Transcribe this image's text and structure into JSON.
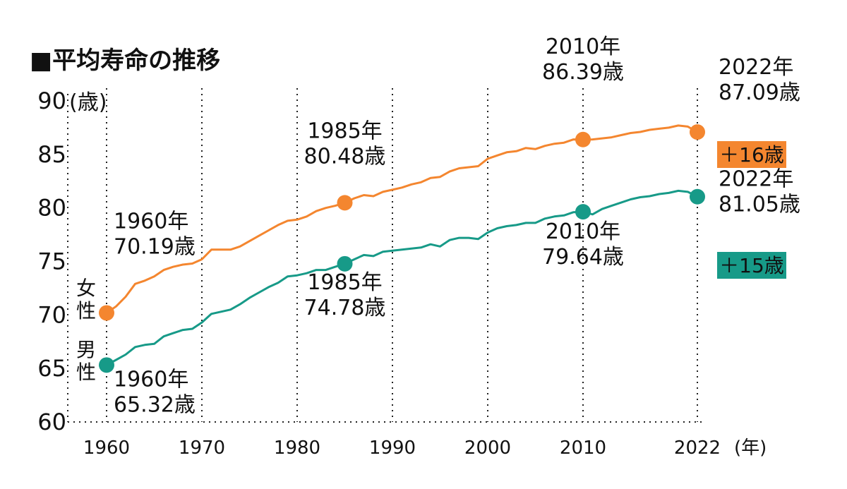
{
  "chart_data": {
    "type": "line",
    "title": "■平均寿命の推移",
    "ylabel": "(歳)",
    "xlabel": "(年)",
    "ylim": [
      60,
      90
    ],
    "xlim": [
      1956,
      2023
    ],
    "y_ticks": [
      "60",
      "65",
      "70",
      "75",
      "80",
      "85",
      "90"
    ],
    "x_ticks": [
      "1960",
      "1970",
      "1980",
      "1990",
      "2000",
      "2010",
      "2022"
    ],
    "grid": "vertical dotted lines at tick years",
    "series": [
      {
        "name": "女性",
        "label_lines": [
          "女",
          "性"
        ],
        "color": "#f4862f",
        "points": [
          [
            1960,
            70.19
          ],
          [
            1961,
            70.8
          ],
          [
            1962,
            71.7
          ],
          [
            1963,
            72.9
          ],
          [
            1964,
            73.2
          ],
          [
            1965,
            73.6
          ],
          [
            1966,
            74.2
          ],
          [
            1967,
            74.5
          ],
          [
            1968,
            74.7
          ],
          [
            1969,
            74.8
          ],
          [
            1970,
            75.2
          ],
          [
            1971,
            76.1
          ],
          [
            1972,
            76.1
          ],
          [
            1973,
            76.1
          ],
          [
            1974,
            76.4
          ],
          [
            1975,
            76.9
          ],
          [
            1976,
            77.4
          ],
          [
            1977,
            77.9
          ],
          [
            1978,
            78.4
          ],
          [
            1979,
            78.8
          ],
          [
            1980,
            78.9
          ],
          [
            1981,
            79.2
          ],
          [
            1982,
            79.7
          ],
          [
            1983,
            80.0
          ],
          [
            1984,
            80.2
          ],
          [
            1985,
            80.48
          ],
          [
            1986,
            80.9
          ],
          [
            1987,
            81.2
          ],
          [
            1988,
            81.1
          ],
          [
            1989,
            81.5
          ],
          [
            1990,
            81.7
          ],
          [
            1991,
            81.9
          ],
          [
            1992,
            82.2
          ],
          [
            1993,
            82.4
          ],
          [
            1994,
            82.8
          ],
          [
            1995,
            82.9
          ],
          [
            1996,
            83.4
          ],
          [
            1997,
            83.7
          ],
          [
            1998,
            83.8
          ],
          [
            1999,
            83.9
          ],
          [
            2000,
            84.6
          ],
          [
            2001,
            84.9
          ],
          [
            2002,
            85.2
          ],
          [
            2003,
            85.3
          ],
          [
            2004,
            85.6
          ],
          [
            2005,
            85.5
          ],
          [
            2006,
            85.8
          ],
          [
            2007,
            86.0
          ],
          [
            2008,
            86.1
          ],
          [
            2009,
            86.4
          ],
          [
            2010,
            86.39
          ],
          [
            2011,
            86.4
          ],
          [
            2012,
            86.5
          ],
          [
            2013,
            86.6
          ],
          [
            2014,
            86.8
          ],
          [
            2015,
            87.0
          ],
          [
            2016,
            87.1
          ],
          [
            2017,
            87.3
          ],
          [
            2018,
            87.4
          ],
          [
            2019,
            87.5
          ],
          [
            2020,
            87.7
          ],
          [
            2021,
            87.6
          ],
          [
            2022,
            87.09
          ]
        ],
        "highlights": [
          {
            "year": "1960年",
            "value": "70.19歳"
          },
          {
            "year": "1985年",
            "value": "80.48歳"
          },
          {
            "year": "2010年",
            "value": "86.39歳"
          },
          {
            "year": "2022年",
            "value": "87.09歳"
          }
        ],
        "badge": "＋16歳"
      },
      {
        "name": "男性",
        "label_lines": [
          "男",
          "性"
        ],
        "color": "#179a88",
        "points": [
          [
            1960,
            65.32
          ],
          [
            1961,
            65.8
          ],
          [
            1962,
            66.3
          ],
          [
            1963,
            67.0
          ],
          [
            1964,
            67.2
          ],
          [
            1965,
            67.3
          ],
          [
            1966,
            68.0
          ],
          [
            1967,
            68.3
          ],
          [
            1968,
            68.6
          ],
          [
            1969,
            68.7
          ],
          [
            1970,
            69.3
          ],
          [
            1971,
            70.1
          ],
          [
            1972,
            70.3
          ],
          [
            1973,
            70.5
          ],
          [
            1974,
            71.0
          ],
          [
            1975,
            71.6
          ],
          [
            1976,
            72.1
          ],
          [
            1977,
            72.6
          ],
          [
            1978,
            73.0
          ],
          [
            1979,
            73.6
          ],
          [
            1980,
            73.7
          ],
          [
            1981,
            73.9
          ],
          [
            1982,
            74.2
          ],
          [
            1983,
            74.2
          ],
          [
            1984,
            74.5
          ],
          [
            1985,
            74.78
          ],
          [
            1986,
            75.2
          ],
          [
            1987,
            75.6
          ],
          [
            1988,
            75.5
          ],
          [
            1989,
            75.9
          ],
          [
            1990,
            76.0
          ],
          [
            1991,
            76.1
          ],
          [
            1992,
            76.2
          ],
          [
            1993,
            76.3
          ],
          [
            1994,
            76.6
          ],
          [
            1995,
            76.4
          ],
          [
            1996,
            77.0
          ],
          [
            1997,
            77.2
          ],
          [
            1998,
            77.2
          ],
          [
            1999,
            77.1
          ],
          [
            2000,
            77.7
          ],
          [
            2001,
            78.1
          ],
          [
            2002,
            78.3
          ],
          [
            2003,
            78.4
          ],
          [
            2004,
            78.6
          ],
          [
            2005,
            78.6
          ],
          [
            2006,
            79.0
          ],
          [
            2007,
            79.2
          ],
          [
            2008,
            79.3
          ],
          [
            2009,
            79.6
          ],
          [
            2010,
            79.64
          ],
          [
            2011,
            79.4
          ],
          [
            2012,
            79.9
          ],
          [
            2013,
            80.2
          ],
          [
            2014,
            80.5
          ],
          [
            2015,
            80.8
          ],
          [
            2016,
            81.0
          ],
          [
            2017,
            81.1
          ],
          [
            2018,
            81.3
          ],
          [
            2019,
            81.4
          ],
          [
            2020,
            81.6
          ],
          [
            2021,
            81.5
          ],
          [
            2022,
            81.05
          ]
        ],
        "highlights": [
          {
            "year": "1960年",
            "value": "65.32歳"
          },
          {
            "year": "1985年",
            "value": "74.78歳"
          },
          {
            "year": "2010年",
            "value": "79.64歳"
          },
          {
            "year": "2022年",
            "value": "81.05歳"
          }
        ],
        "badge": "＋15歳"
      }
    ]
  }
}
